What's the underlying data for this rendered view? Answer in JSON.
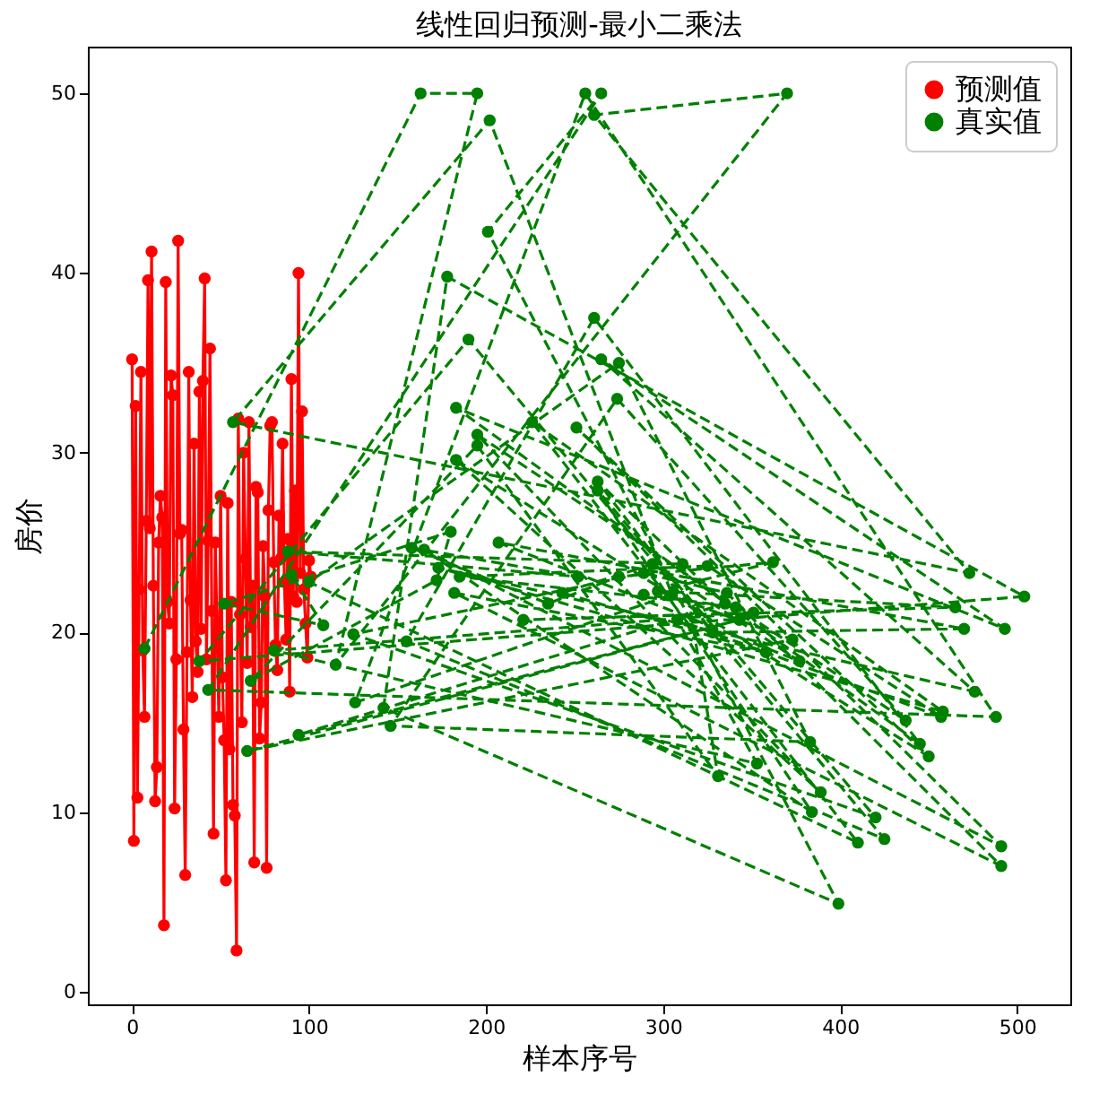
{
  "chart_data": {
    "type": "line",
    "title": "线性回归预测-最小二乘法",
    "xlabel": "样本序号",
    "ylabel": "房价",
    "xlim": [
      -25,
      530
    ],
    "ylim": [
      -0.7,
      52.6
    ],
    "xticks": [
      0,
      100,
      200,
      300,
      400,
      500
    ],
    "yticks": [
      0,
      10,
      20,
      30,
      40,
      50
    ],
    "grid": false,
    "legend": "top right",
    "marker": "circle",
    "series": [
      {
        "name": "预测值",
        "color": "#ff0000",
        "line_style": "solid",
        "x": [
          0,
          1,
          2,
          3,
          4,
          5,
          6,
          7,
          8,
          9,
          10,
          11,
          12,
          13,
          14,
          15,
          16,
          17,
          18,
          19,
          20,
          21,
          22,
          23,
          24,
          25,
          26,
          27,
          28,
          29,
          30,
          31,
          32,
          33,
          34,
          35,
          36,
          37,
          38,
          39,
          40,
          41,
          42,
          43,
          44,
          45,
          46,
          47,
          48,
          49,
          50,
          51,
          52,
          53,
          54,
          55,
          56,
          57,
          58,
          59,
          60,
          61,
          62,
          63,
          64,
          65,
          66,
          67,
          68,
          69,
          70,
          71,
          72,
          73,
          74,
          75,
          76,
          77,
          78,
          79,
          80,
          81,
          82,
          83,
          84,
          85,
          86,
          87,
          88,
          89,
          90,
          91,
          92,
          93,
          94,
          95,
          96,
          97,
          98,
          99,
          100,
          101
        ],
        "values": [
          35.2,
          8.4,
          32.6,
          10.8,
          22.4,
          34.5,
          19,
          15.3,
          26.2,
          39.6,
          25.8,
          41.2,
          22.6,
          10.6,
          12.5,
          25,
          27.6,
          26.4,
          3.7,
          39.5,
          21.7,
          20.5,
          34.3,
          33.2,
          10.2,
          18.5,
          41.8,
          25.5,
          25.7,
          14.6,
          6.5,
          18.9,
          34.5,
          21.8,
          16.4,
          30.5,
          19.5,
          17.8,
          33.4,
          20.2,
          34,
          39.7,
          18.5,
          25.1,
          35.8,
          21.2,
          8.8,
          25,
          20,
          15.3,
          27.6,
          17.5,
          14,
          6.2,
          27.2,
          13.5,
          21.7,
          10.4,
          9.8,
          2.3,
          31.9,
          21,
          15,
          30,
          24.1,
          18.3,
          31.7,
          20.3,
          22.6,
          7.2,
          28.1,
          27.8,
          14.1,
          16.1,
          24.8,
          22,
          6.9,
          26.8,
          31.5,
          31.7,
          23.9,
          19.3,
          17.9,
          26.5,
          24.1,
          30.5,
          22.8,
          19.6,
          25.2,
          16.7,
          34.1,
          22,
          27.9,
          21.7,
          40,
          23.3,
          32.3,
          22.4,
          20.5,
          18.6,
          24,
          23.1
        ]
      },
      {
        "name": "真实值",
        "color": "#008000",
        "line_style": "dashed",
        "x": [
          7,
          163,
          195,
          115,
          370,
          261,
          473,
          57,
          202,
          305,
          126,
          256,
          488,
          43,
          265,
          201,
          399,
          142,
          178,
          504,
          38,
          190,
          425,
          155,
          261,
          445,
          183,
          493,
          265,
          476,
          173,
          458,
          226,
          410,
          100,
          275,
          383,
          146,
          274,
          437,
          195,
          389,
          183,
          450,
          251,
          491,
          165,
          384,
          263,
          420,
          125,
          289,
          336,
          491,
          182,
          358,
          243,
          294,
          377,
          207,
          470,
          328,
          263,
          335,
          94,
          343,
          65,
          373,
          297,
          465,
          221,
          351,
          80,
          353,
          308,
          457,
          325,
          185,
          341,
          289,
          362,
          275,
          235,
          158,
          252,
          88,
          311,
          331,
          195,
          67,
          172,
          180,
          52,
          108,
          90
        ],
        "values": [
          19.1,
          50,
          50,
          18.2,
          50,
          48.8,
          23.3,
          31.7,
          48.5,
          22.1,
          16.1,
          50,
          15.3,
          16.8,
          50,
          42.3,
          4.9,
          15.8,
          39.8,
          22,
          18.4,
          36.3,
          8.5,
          19.5,
          37.5,
          13.8,
          32.5,
          20.2,
          35.2,
          16.7,
          23.6,
          15.6,
          31.7,
          8.3,
          22.8,
          35,
          13.9,
          14.8,
          33,
          15.1,
          31,
          11.1,
          29.6,
          13.1,
          31.4,
          8.1,
          24.6,
          10,
          27.9,
          9.7,
          19.9,
          23.3,
          22.2,
          7,
          22.2,
          18.9,
          22.2,
          23.8,
          18.4,
          25,
          20.2,
          20,
          28.4,
          21.6,
          14.3,
          20.7,
          13.4,
          19.6,
          22.3,
          21.4,
          20.7,
          21.1,
          19,
          12.7,
          20.7,
          15.3,
          23.7,
          23.1,
          21.4,
          22.1,
          23.9,
          23.1,
          21.6,
          24.7,
          23.1,
          24.5,
          23.8,
          12,
          30.4,
          17.3,
          22.9,
          25.6,
          21.6,
          20.4,
          23.2
        ]
      }
    ]
  }
}
